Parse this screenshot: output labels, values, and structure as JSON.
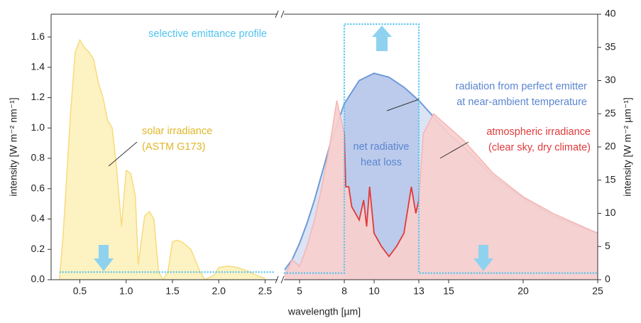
{
  "chart_data": {
    "type": "area",
    "xlabel": "wavelength [µm]",
    "ylabel": "intensity [W m⁻² nm⁻¹]",
    "y2label": "intensity [W m⁻² µm⁻¹]",
    "ylim": [
      0,
      1.75
    ],
    "yticks": [
      {
        "value": 0,
        "label": "0.0"
      },
      0.2,
      0.4,
      0.6,
      0.8,
      {
        "value": 1,
        "label": "1.0"
      },
      1.2,
      1.4,
      1.6
    ],
    "y2lim": [
      0,
      40
    ],
    "y2ticks": [
      0,
      5,
      10,
      15,
      20,
      25,
      30,
      35,
      40
    ],
    "panels": [
      {
        "xlim": [
          0.19,
          2.65
        ],
        "xticks": [
          0.5,
          {
            "value": 1,
            "label": "1.0"
          },
          1.5,
          {
            "value": 2,
            "label": "2.0"
          },
          2.5
        ],
        "series": [
          {
            "style": "area",
            "axis": "y",
            "color": "#f6dc7c",
            "fill": "#fdf2c2",
            "x": [
              0.28,
              0.32,
              0.35,
              0.4,
              0.45,
              0.5,
              0.55,
              0.6,
              0.65,
              0.7,
              0.75,
              0.8,
              0.85,
              0.9,
              0.95,
              1.0,
              1.05,
              1.1,
              1.13,
              1.2,
              1.25,
              1.3,
              1.35,
              1.4,
              1.45,
              1.5,
              1.55,
              1.6,
              1.7,
              1.8,
              1.85,
              1.95,
              2.0,
              2.1,
              2.2,
              2.3,
              2.4,
              2.5
            ],
            "values": [
              0,
              0.3,
              0.6,
              1.1,
              1.5,
              1.58,
              1.53,
              1.5,
              1.45,
              1.3,
              1.2,
              1.05,
              1.0,
              0.72,
              0.35,
              0.72,
              0.7,
              0.55,
              0.1,
              0.42,
              0.45,
              0.4,
              0.05,
              0,
              0.05,
              0.25,
              0.26,
              0.25,
              0.2,
              0.05,
              0,
              0.03,
              0.08,
              0.09,
              0.08,
              0.06,
              0.03,
              0.01
            ]
          },
          {
            "style": "dotted",
            "axis": "y",
            "color": "#4fc3f0",
            "x": [
              0.28,
              2.6
            ],
            "values": [
              0.05,
              0.05
            ]
          }
        ]
      },
      {
        "xlim": [
          3.95,
          25
        ],
        "xticks": [
          5,
          8,
          10,
          13,
          15,
          20,
          25
        ],
        "series": [
          {
            "style": "emitter",
            "axis": "y2",
            "color": "#6f9ad8",
            "fill": "#dbe3f4",
            "window_fill": "#bccbec",
            "x": [
              4,
              4.5,
              5,
              5.5,
              6,
              7,
              8,
              9,
              10,
              11,
              12,
              13,
              14,
              15,
              16,
              18,
              20,
              22,
              25
            ],
            "values": [
              1.5,
              3,
              5.5,
              8.5,
              12,
              20,
              26.5,
              30,
              31.1,
              30.5,
              29,
              27,
              24.5,
              22,
              20,
              15.5,
              12.3,
              9.6,
              7
            ]
          },
          {
            "style": "atmosphere",
            "axis": "y2",
            "color": "#f5b5b3",
            "fill": "#f9cfcd",
            "window_color": "#e03a3a",
            "x": [
              4,
              4.5,
              5,
              5.5,
              6,
              6.5,
              7,
              7.5,
              7.8,
              8,
              8.1,
              8.3,
              8.5,
              9,
              9.3,
              9.5,
              9.7,
              10,
              10.5,
              11,
              11.5,
              12,
              12.5,
              12.8,
              13,
              13.3,
              14,
              15,
              16,
              18,
              20,
              22,
              25
            ],
            "values": [
              0.5,
              3,
              2,
              5,
              9,
              14,
              20,
              27,
              24,
              22,
              14,
              14,
              11,
              9,
              12,
              8,
              14,
              7,
              5,
              3.5,
              5,
              7,
              14,
              10,
              12,
              22,
              25,
              23,
              21,
              16,
              12.5,
              10,
              7
            ]
          },
          {
            "style": "dotted",
            "axis": "y2",
            "color": "#4fc3f0",
            "x": [
              3.95,
              8,
              8,
              13,
              13,
              25
            ],
            "values": [
              1,
              1,
              38.5,
              38.5,
              1,
              1
            ]
          }
        ]
      }
    ],
    "annotations": [
      {
        "lines": [
          "selective emittance profile"
        ],
        "color": "#4fc3f0"
      },
      {
        "lines": [
          "solar irradiance",
          "(ASTM G173)"
        ],
        "color": "#e0b628"
      },
      {
        "lines": [
          "radiation from perfect emitter",
          "at near-ambient temperature"
        ],
        "color": "#5b86cf"
      },
      {
        "lines": [
          "net radiative",
          "heat loss"
        ],
        "color": "#5b86cf"
      },
      {
        "lines": [
          "atmospheric irradiance",
          "(clear sky, dry climate)"
        ],
        "color": "#e03a3a"
      }
    ]
  }
}
